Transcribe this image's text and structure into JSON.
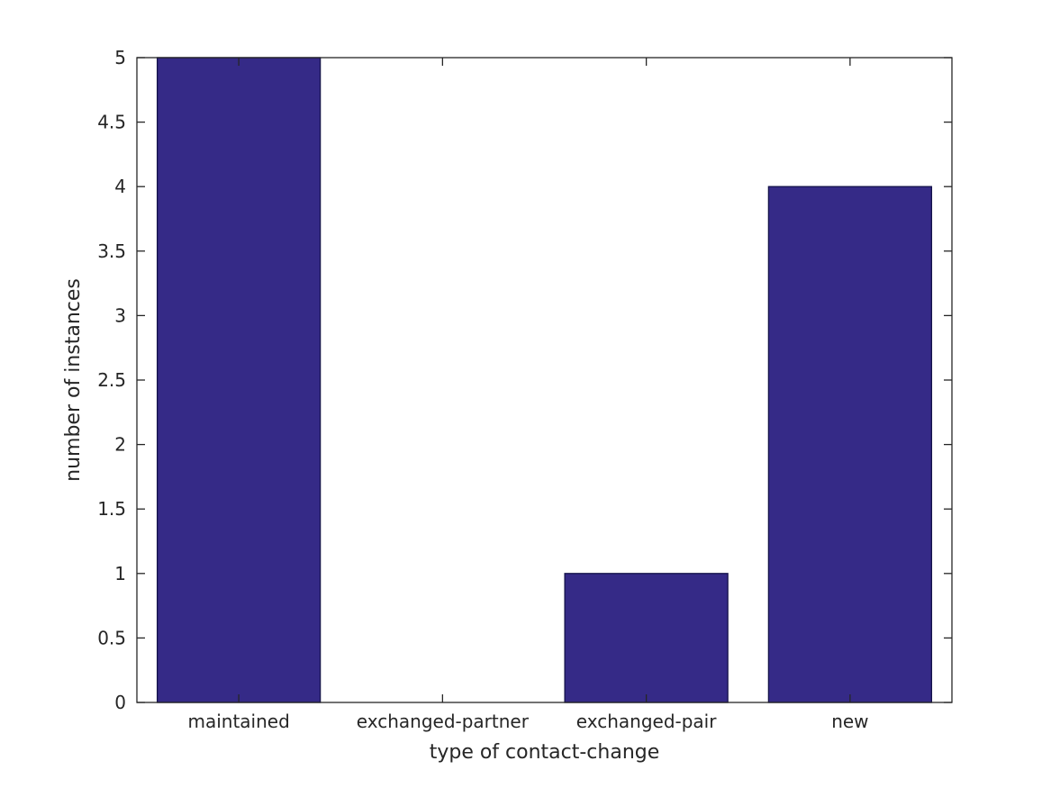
{
  "chart_data": {
    "type": "bar",
    "title": "",
    "xlabel": "type of contact-change",
    "ylabel": "number of instances",
    "categories": [
      "maintained",
      "exchanged-partner",
      "exchanged-pair",
      "new"
    ],
    "values": [
      5,
      0,
      1,
      4
    ],
    "ylim": [
      0,
      5
    ],
    "y_ticks": [
      0,
      0.5,
      1,
      1.5,
      2,
      2.5,
      3,
      3.5,
      4,
      4.5,
      5
    ],
    "y_tick_labels": [
      "0",
      "0.5",
      "1",
      "1.5",
      "2",
      "2.5",
      "3",
      "3.5",
      "4",
      "4.5",
      "5"
    ],
    "bar_color": "#352A87",
    "bar_edge_color": "#14124a",
    "axis_color": "#262626",
    "background_color": "#ffffff",
    "grid": false,
    "legend": null,
    "bar_width_fraction": 0.8
  }
}
